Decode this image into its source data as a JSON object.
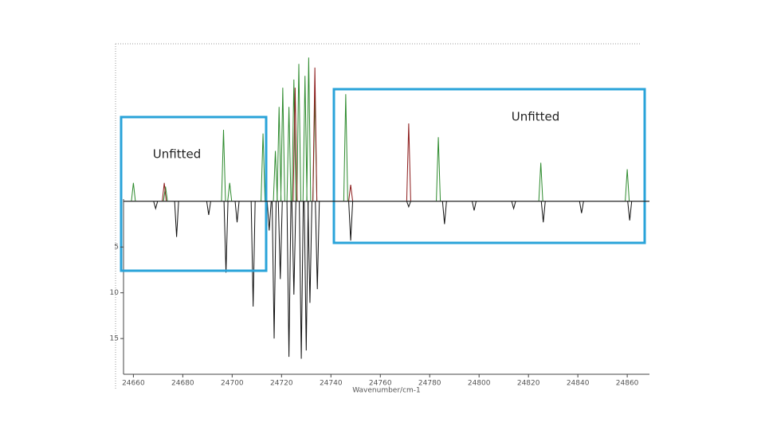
{
  "chart_data": {
    "type": "spectrum",
    "x_label": "Wavenumber/cm-1",
    "annotations": [
      "Unfitted",
      "Unfitted"
    ],
    "xlim": [
      24656,
      24869
    ],
    "xticks": [
      24660,
      24680,
      24700,
      24720,
      24740,
      24760,
      24780,
      24800,
      24820,
      24840,
      24860
    ],
    "ylim": [
      -17.2,
      18.9
    ],
    "y_inverted": true,
    "yticks": [
      5,
      10,
      15
    ],
    "series": [
      {
        "color": "#2e8b2e",
        "x": [
          24660,
          24673,
          24696.5,
          24699,
          24712.5,
          24717.5,
          24719,
          24720.5,
          24723,
          24725,
          24727,
          24729.5,
          24731,
          24733.5,
          24746,
          24783.5,
          24825,
          24860
        ],
        "values": [
          -2,
          -1.6,
          -7.8,
          -2,
          -7.4,
          -5.5,
          -10.3,
          -12.4,
          -10.3,
          -13.3,
          -15,
          -13.7,
          -15.7,
          -11.6,
          -11.7,
          -7,
          -4.2,
          -3.5
        ]
      },
      {
        "color": "#8b1a1a",
        "x": [
          24672.5,
          24725.5,
          24733.5,
          24748,
          24771.5
        ],
        "values": [
          -2,
          -12.4,
          -14.6,
          -1.8,
          -8.5
        ]
      },
      {
        "color": "#111111",
        "x": [
          24669,
          24677.5,
          24690.5,
          24697.5,
          24702,
          24708.5,
          24715,
          24717,
          24719.5,
          24723,
          24725,
          24728,
          24730,
          24731.5,
          24734.5,
          24748,
          24771.5,
          24786,
          24798,
          24814,
          24826,
          24841.5,
          24861
        ],
        "values": [
          0.8,
          3.9,
          1.5,
          7.8,
          2.3,
          11.5,
          3.2,
          15,
          8.5,
          17,
          10.2,
          17.2,
          16.3,
          11.1,
          9.6,
          4.3,
          0.6,
          2.5,
          1,
          0.8,
          2.3,
          1.3,
          2.1
        ]
      }
    ]
  }
}
